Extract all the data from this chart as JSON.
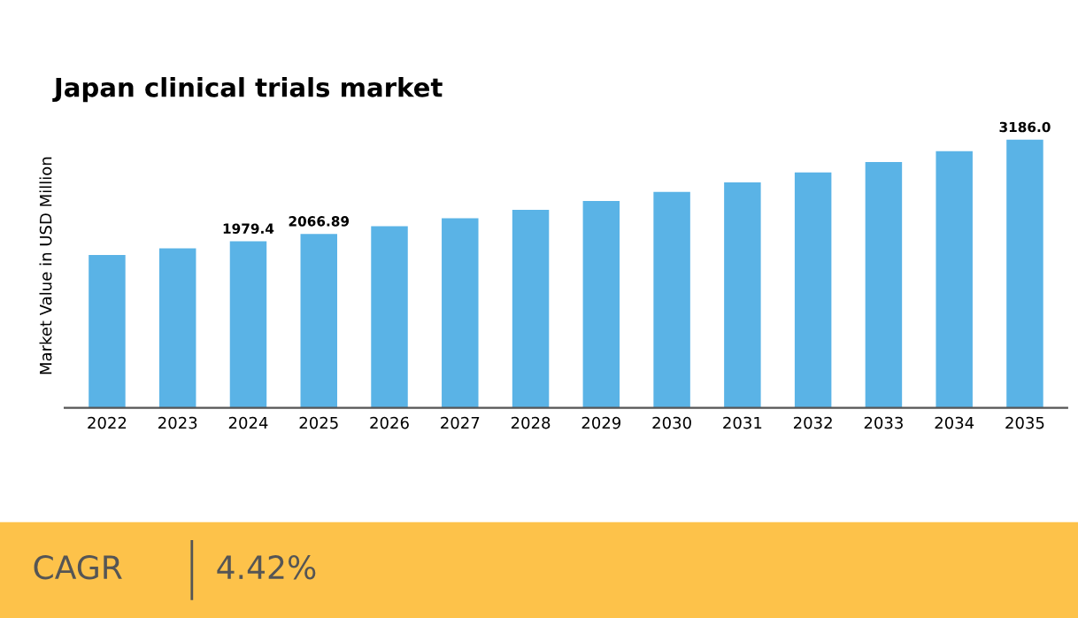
{
  "chart_data": {
    "type": "bar",
    "title": "Japan clinical trials market",
    "ylabel": "Market Value in USD Million",
    "categories": [
      "2022",
      "2023",
      "2024",
      "2025",
      "2026",
      "2027",
      "2028",
      "2029",
      "2030",
      "2031",
      "2032",
      "2033",
      "2034",
      "2035"
    ],
    "values": [
      1815,
      1896,
      1979.4,
      2066.89,
      2158,
      2254,
      2353,
      2457,
      2566,
      2679,
      2798,
      2921,
      3050,
      3186.0
    ],
    "value_labels": [
      null,
      null,
      "1979.4",
      "2066.89",
      null,
      null,
      null,
      null,
      null,
      null,
      null,
      null,
      null,
      "3186.0"
    ],
    "color": "#5ab3e6",
    "tick_labels": "x",
    "grid": false,
    "annotations": [
      "CAGR",
      "4.42%"
    ]
  }
}
